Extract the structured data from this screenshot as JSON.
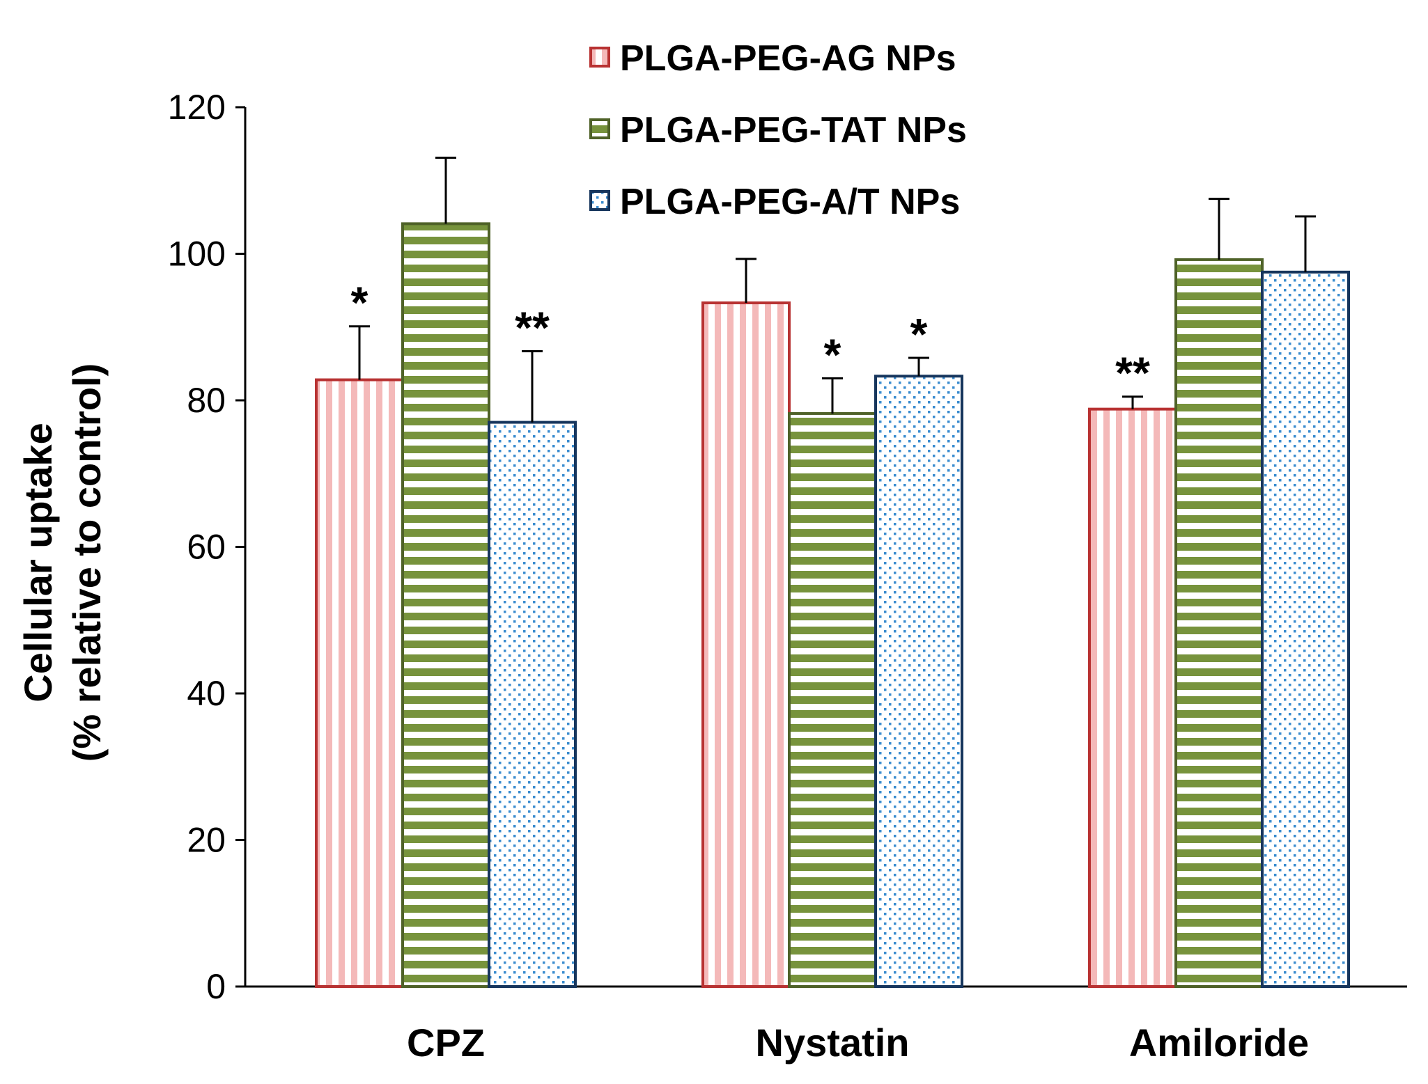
{
  "chart_data": {
    "type": "bar",
    "ylabel_line1": "Cellular uptake",
    "ylabel_line2": "(% relative to control)",
    "xlabel": "",
    "ylim": [
      0,
      120
    ],
    "yticks": [
      0,
      20,
      40,
      60,
      80,
      100,
      120
    ],
    "categories": [
      "CPZ",
      "Nystatin",
      "Amiloride"
    ],
    "series": [
      {
        "name": "PLGA-PEG-AG NPs",
        "pattern": "vertical-stripes",
        "fill_color": "#f4b9b9",
        "edge_color": "#b83232",
        "values": [
          82.8,
          93.3,
          78.8
        ],
        "errors": [
          7.3,
          6.0,
          1.7
        ],
        "significance": [
          "*",
          "",
          "**"
        ]
      },
      {
        "name": "PLGA-PEG-TAT NPs",
        "pattern": "horizontal-stripes",
        "fill_color": "#77933c",
        "edge_color": "#4f6228",
        "values": [
          104.1,
          78.2,
          99.2
        ],
        "errors": [
          9.0,
          4.8,
          8.3
        ],
        "significance": [
          "",
          "*",
          ""
        ]
      },
      {
        "name": "PLGA-PEG-A/T NPs",
        "pattern": "dots",
        "fill_color": "#3a8ccf",
        "edge_color": "#17365d",
        "values": [
          77.0,
          83.3,
          97.5
        ],
        "errors": [
          9.7,
          2.5,
          7.6
        ],
        "significance": [
          "**",
          "*",
          ""
        ]
      }
    ],
    "legend_position": "top-center",
    "grid": false
  }
}
